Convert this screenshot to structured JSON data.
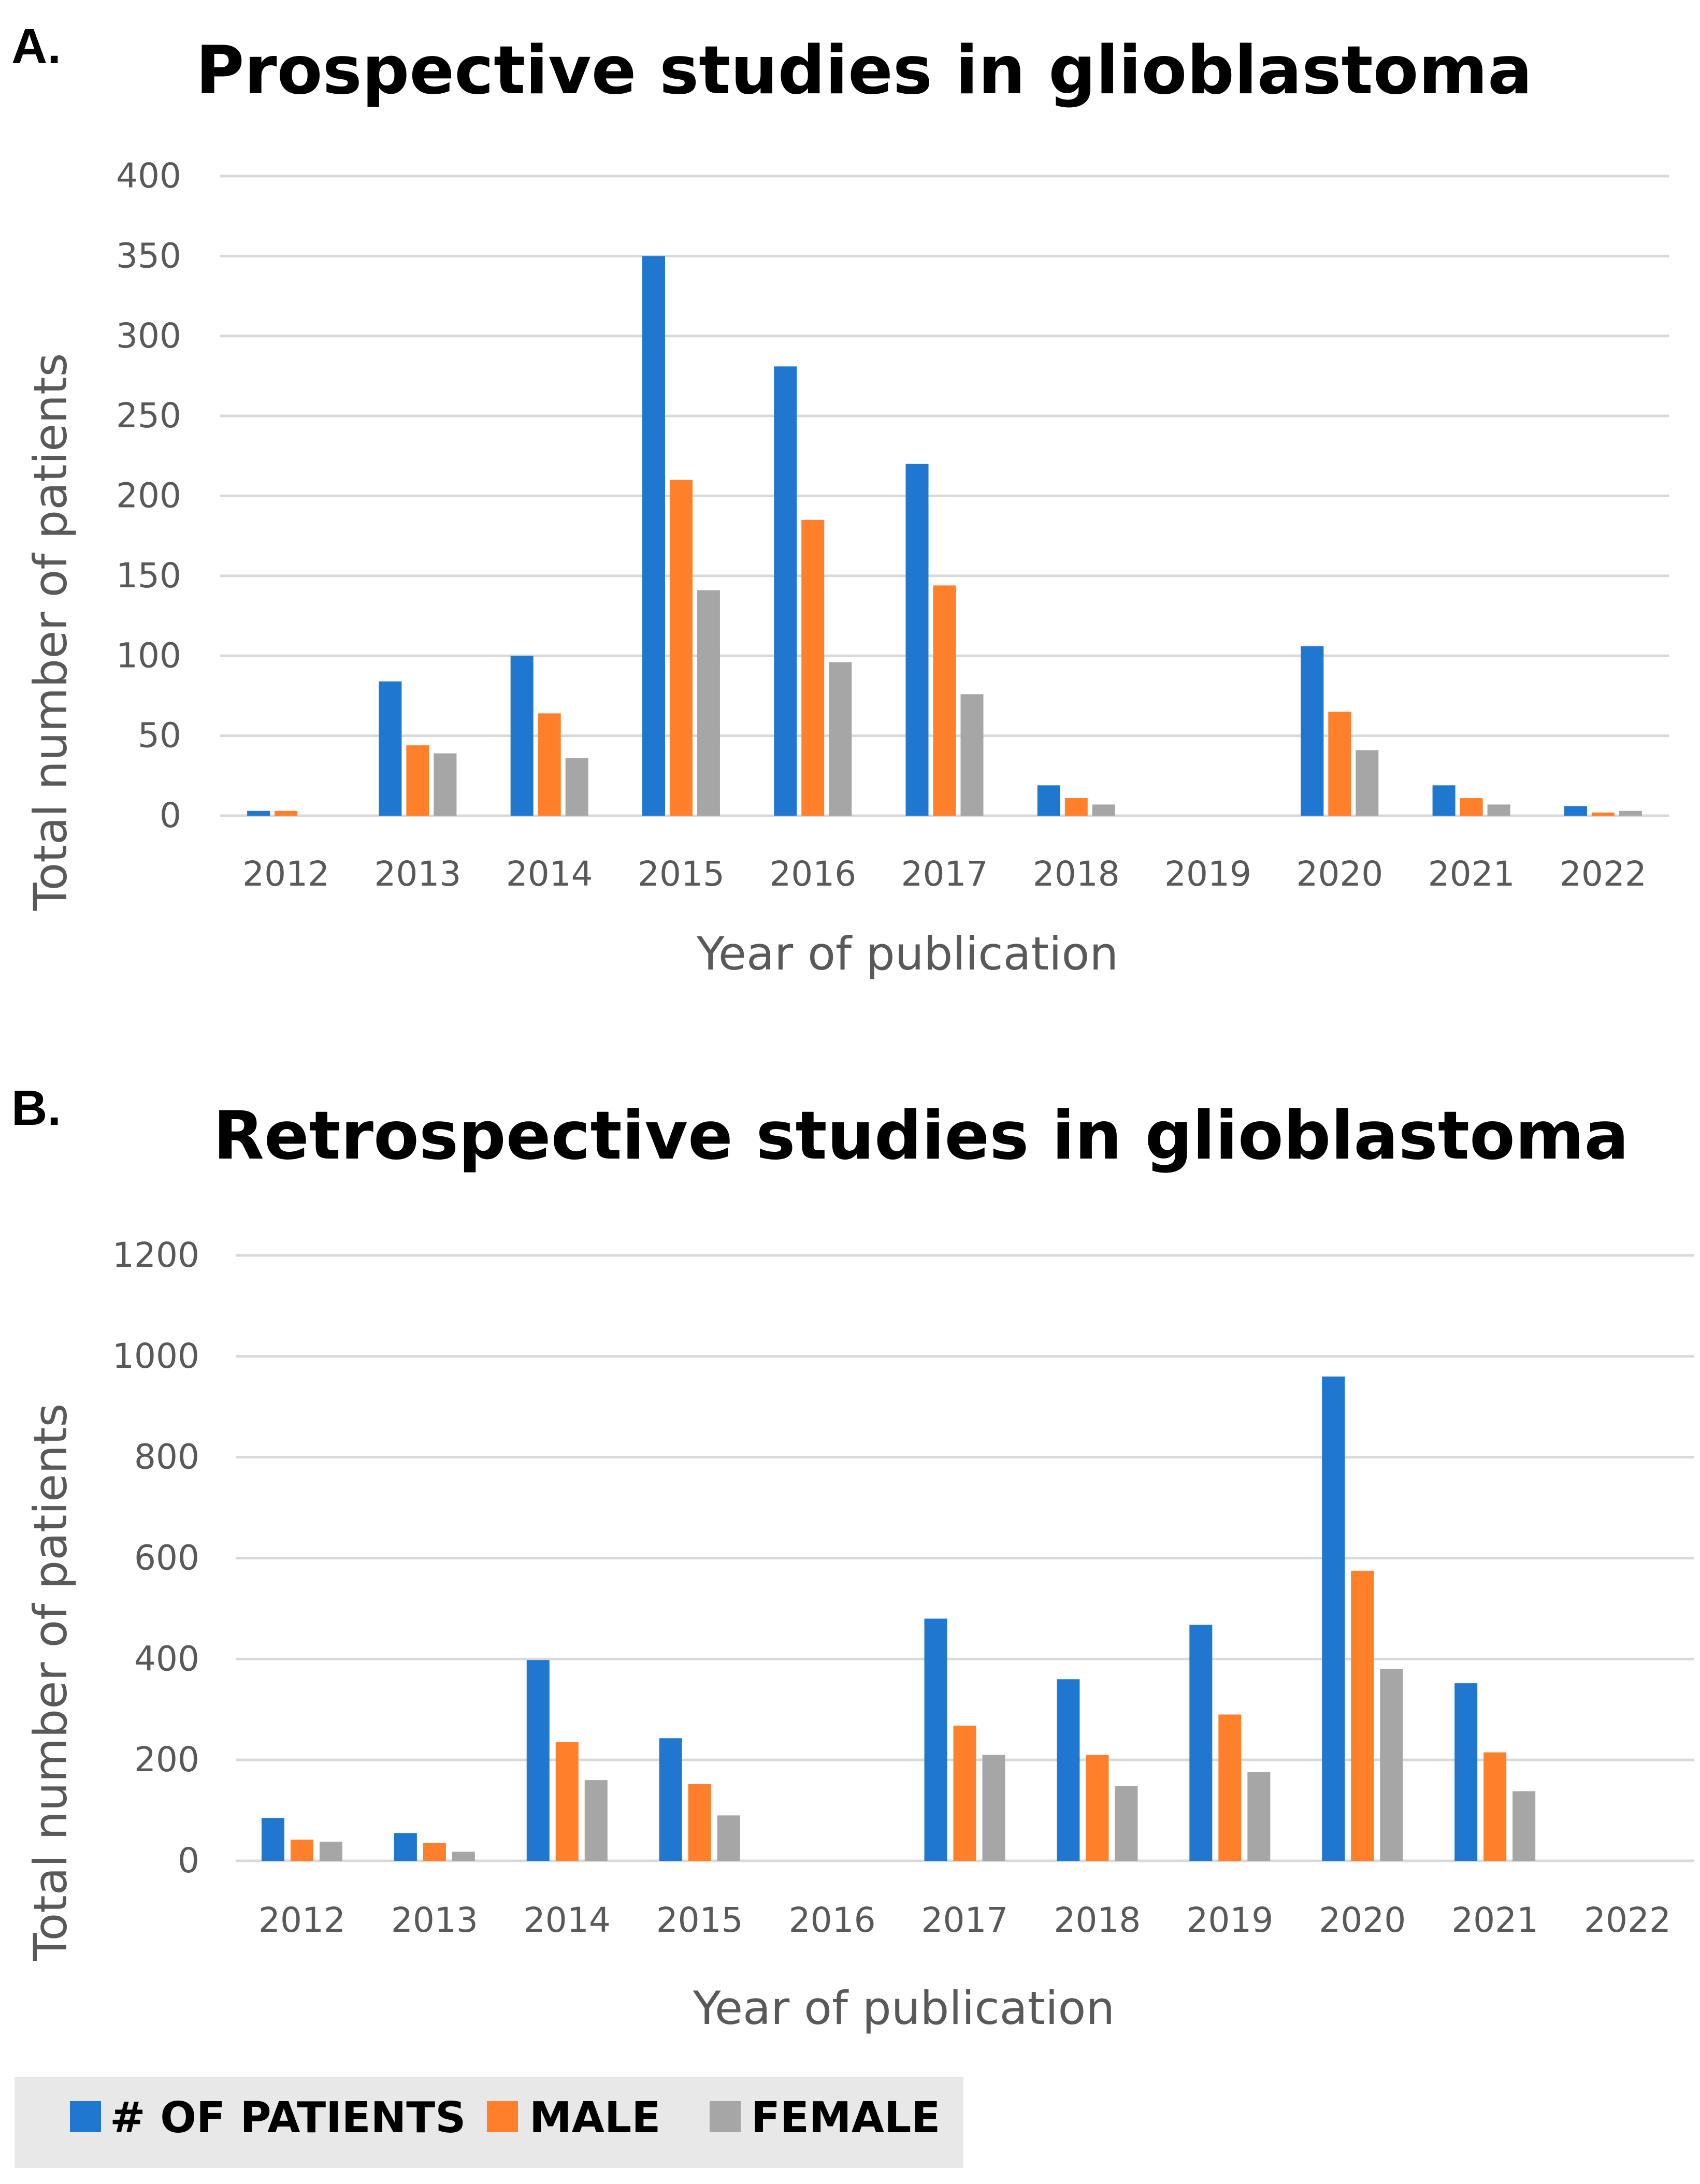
{
  "colors": {
    "patients": "#1f77d0",
    "male": "#ff7f2a",
    "female": "#a6a6a6"
  },
  "legend": [
    {
      "key": "patients",
      "label": "# OF PATIENTS"
    },
    {
      "key": "male",
      "label": "MALE"
    },
    {
      "key": "female",
      "label": "FEMALE"
    }
  ],
  "chart_data": [
    {
      "panel": "A.",
      "type": "bar",
      "title": "Prospective studies in glioblastoma",
      "xlabel": "Year of publication",
      "ylabel": "Total number of patients",
      "ylim": [
        0,
        400
      ],
      "yticks": [
        0,
        50,
        100,
        150,
        200,
        250,
        300,
        350,
        400
      ],
      "categories": [
        "2012",
        "2013",
        "2014",
        "2015",
        "2016",
        "2017",
        "2018",
        "2019",
        "2020",
        "2021",
        "2022"
      ],
      "series": [
        {
          "name": "# OF PATIENTS",
          "key": "patients",
          "values": [
            3,
            84,
            100,
            350,
            281,
            220,
            19,
            0,
            106,
            19,
            6
          ]
        },
        {
          "name": "MALE",
          "key": "male",
          "values": [
            3,
            44,
            64,
            210,
            185,
            144,
            11,
            0,
            65,
            11,
            2
          ]
        },
        {
          "name": "FEMALE",
          "key": "female",
          "values": [
            0,
            39,
            36,
            141,
            96,
            76,
            7,
            0,
            41,
            7,
            3
          ]
        }
      ]
    },
    {
      "panel": "B.",
      "type": "bar",
      "title": "Retrospective studies in glioblastoma",
      "xlabel": "Year of publication",
      "ylabel": "Total number of patients",
      "ylim": [
        0,
        1200
      ],
      "yticks": [
        0,
        200,
        400,
        600,
        800,
        1000,
        1200
      ],
      "categories": [
        "2012",
        "2013",
        "2014",
        "2015",
        "2016",
        "2017",
        "2018",
        "2019",
        "2020",
        "2021",
        "2022"
      ],
      "series": [
        {
          "name": "# OF PATIENTS",
          "key": "patients",
          "values": [
            85,
            55,
            398,
            243,
            0,
            480,
            360,
            468,
            960,
            352,
            0
          ]
        },
        {
          "name": "MALE",
          "key": "male",
          "values": [
            42,
            35,
            235,
            152,
            0,
            268,
            210,
            290,
            575,
            215,
            0
          ]
        },
        {
          "name": "FEMALE",
          "key": "female",
          "values": [
            38,
            18,
            160,
            90,
            0,
            210,
            148,
            176,
            380,
            138,
            0
          ]
        }
      ]
    }
  ]
}
